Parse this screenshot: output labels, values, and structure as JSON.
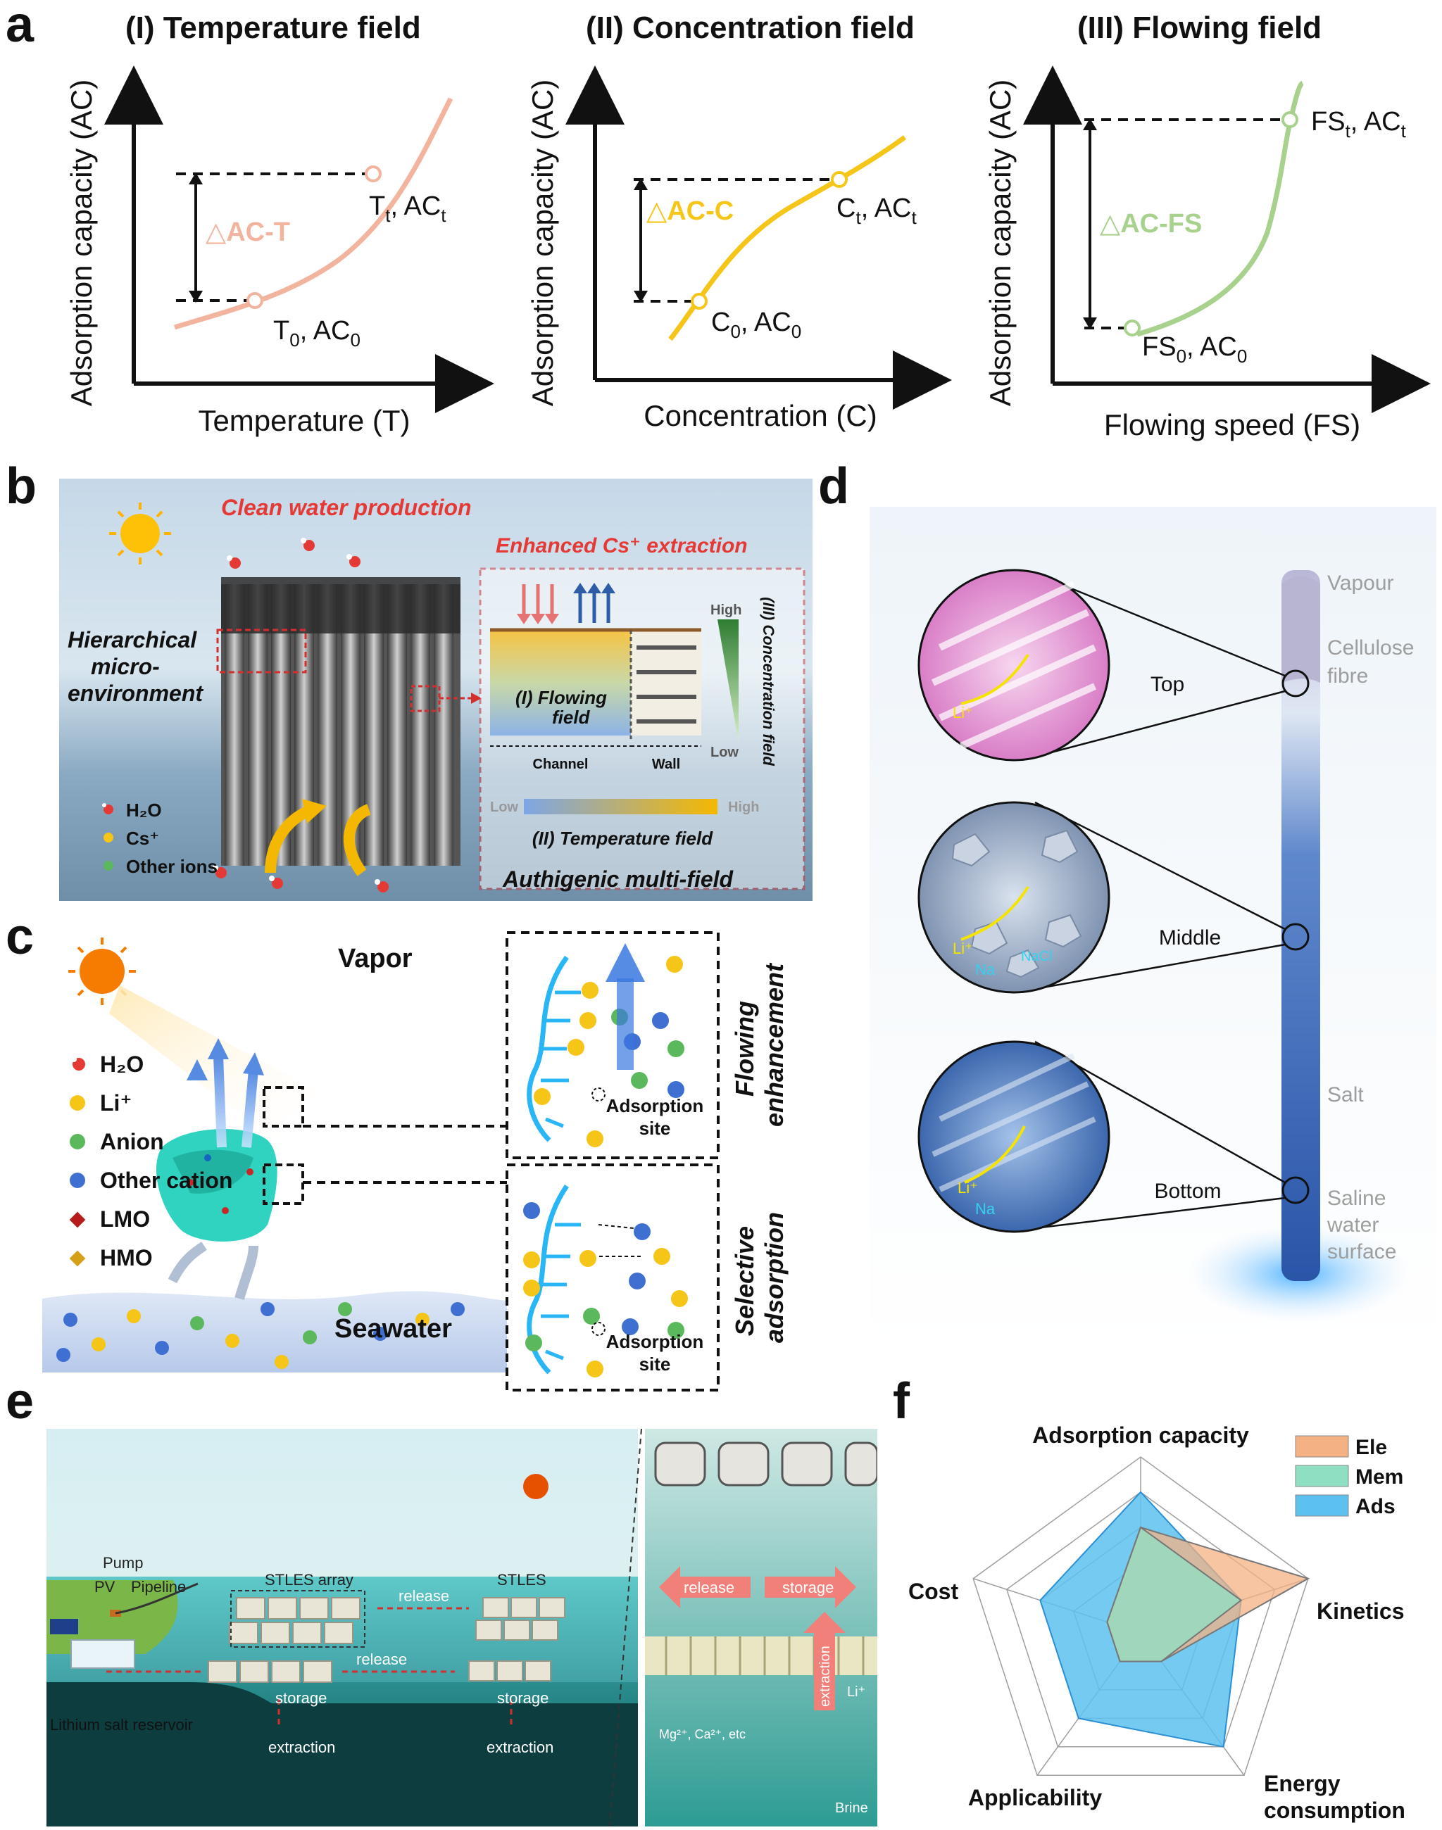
{
  "figure": {
    "panel_a": {
      "letter": "a",
      "plots": [
        {
          "title": "(I)  Temperature field",
          "ylabel": "Adsorption capacity (AC)",
          "xlabel": "Temperature (T)",
          "delta_label": "△AC-T",
          "start_label": {
            "base": "T",
            "sub": "0",
            "mid": ", AC",
            "sub2": "0"
          },
          "end_label": {
            "base": "T",
            "sub": "t",
            "mid": ", AC",
            "sub2": "t"
          },
          "color": "#f2b49e"
        },
        {
          "title": "(II) Concentration field",
          "ylabel": "Adsorption capacity (AC)",
          "xlabel": "Concentration (C)",
          "delta_label": "△AC-C",
          "start_label": {
            "base": "C",
            "sub": "0",
            "mid": ", AC",
            "sub2": "0"
          },
          "end_label": {
            "base": "C",
            "sub": "t",
            "mid": ", AC",
            "sub2": "t"
          },
          "color": "#f5c518"
        },
        {
          "title": "(III) Flowing field",
          "ylabel": "Adsorption capacity (AC)",
          "xlabel": "Flowing speed (FS)",
          "delta_label": "△AC-FS",
          "start_label": {
            "base": "FS",
            "sub": "0",
            "mid": ", AC",
            "sub2": "0"
          },
          "end_label": {
            "base": "FS",
            "sub": "t",
            "mid": ", AC",
            "sub2": "t"
          },
          "color": "#a9d18e"
        }
      ]
    },
    "panel_b": {
      "letter": "b",
      "clean_water": "Clean water production",
      "enhanced": "Enhanced Cs⁺ extraction",
      "hierarchical": [
        "Hierarchical",
        "micro-",
        "environment"
      ],
      "legend": [
        "H₂O",
        "Cs⁺",
        "Other ions"
      ],
      "flowing_field": [
        "(I) Flowing",
        "field"
      ],
      "channel": "Channel",
      "wall": "Wall",
      "high": "High",
      "low": "Low",
      "concentration_field": "(III) Concentration field",
      "temp_low": "Low",
      "temp_high": "High",
      "temperature_field": "(II) Temperature field",
      "authigenic": "Authigenic multi-field"
    },
    "panel_c": {
      "letter": "c",
      "vapor": "Vapor",
      "seawater": "Seawater",
      "legend": [
        "H₂O",
        "Li⁺",
        "Anion",
        "Other cation",
        "LMO",
        "HMO"
      ],
      "adsorption_site": [
        "Adsorption",
        "site"
      ],
      "flowing": [
        "Flowing",
        "enhancement"
      ],
      "selective": [
        "Selective",
        "adsorption"
      ]
    },
    "panel_d": {
      "letter": "d",
      "labels": [
        "Vapour",
        "Cellulose",
        "fibre",
        "Salt",
        "Saline",
        "water",
        "surface"
      ],
      "zooms": [
        "Top",
        "Middle",
        "Bottom"
      ],
      "ion_li": "Li⁺",
      "ion_na": "Na",
      "nacl": "NaCl"
    },
    "panel_e": {
      "letter": "e",
      "pump": "Pump",
      "pv": "PV",
      "pipeline": "Pipeline",
      "array": "STLES array",
      "stles": "STLES",
      "release": "release",
      "storage": "storage",
      "extraction": "extraction",
      "reservoir": "Lithium salt reservoir",
      "ions": "Mg²⁺, Ca²⁺, etc",
      "li": "Li⁺",
      "brine": "Brine"
    },
    "panel_f": {
      "letter": "f",
      "axes": [
        "Adsorption capacity",
        "Kinetics",
        "Energy consumption",
        "Applicability",
        "Cost"
      ],
      "legend": [
        "Ele",
        "Mem",
        "Ads"
      ]
    }
  },
  "chart_data": {
    "type": "radar",
    "title": "",
    "axes": [
      "Adsorption capacity",
      "Kinetics",
      "Energy consumption",
      "Applicability",
      "Cost"
    ],
    "range": [
      0,
      5
    ],
    "series": [
      {
        "name": "Ele",
        "color": "#f4b183",
        "values": [
          3,
          5,
          1,
          1,
          1
        ]
      },
      {
        "name": "Mem",
        "color": "#8fe0c3",
        "values": [
          3,
          3,
          1,
          1,
          1
        ]
      },
      {
        "name": "Ads",
        "color": "#5dc1ef",
        "values": [
          4,
          3,
          4,
          3,
          3
        ]
      }
    ]
  }
}
